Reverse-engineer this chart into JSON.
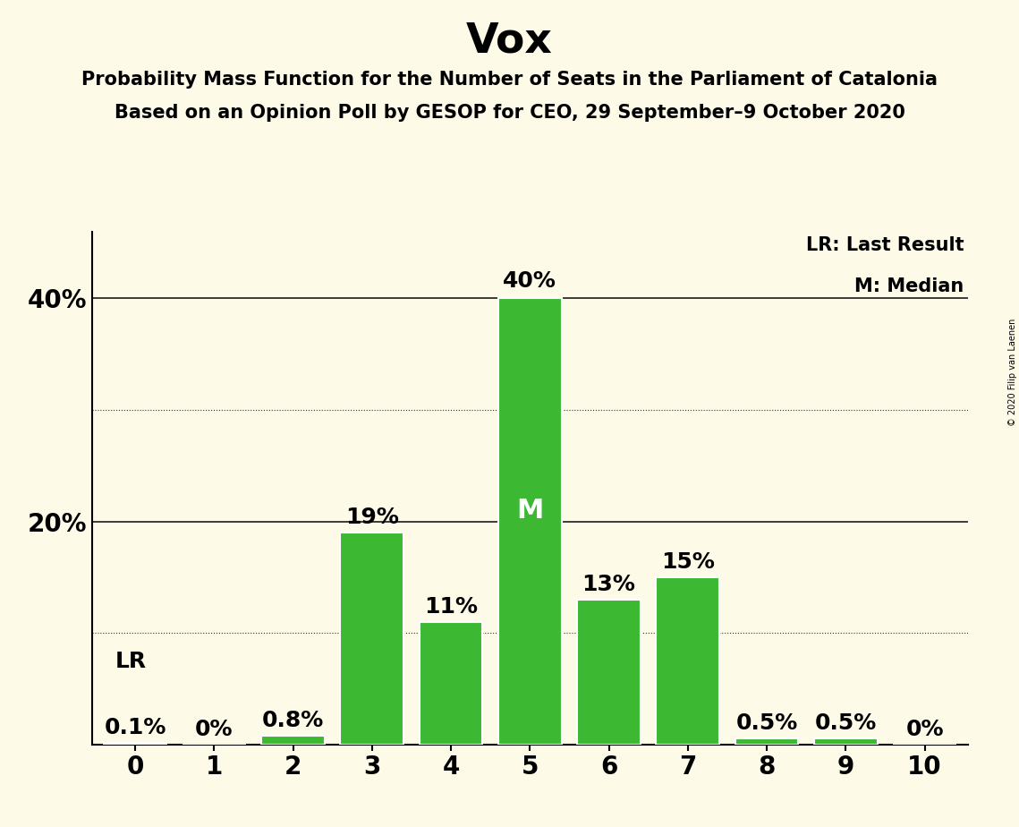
{
  "title": "Vox",
  "subtitle1": "Probability Mass Function for the Number of Seats in the Parliament of Catalonia",
  "subtitle2": "Based on an Opinion Poll by GESOP for CEO, 29 September–9 October 2020",
  "copyright": "© 2020 Filip van Laenen",
  "categories": [
    0,
    1,
    2,
    3,
    4,
    5,
    6,
    7,
    8,
    9,
    10
  ],
  "values": [
    0.1,
    0.0,
    0.8,
    19.0,
    11.0,
    40.0,
    13.0,
    15.0,
    0.5,
    0.5,
    0.0
  ],
  "bar_color": "#3cb832",
  "background_color": "#fdfae8",
  "bar_edge_color": "#ffffff",
  "last_result": 0,
  "median": 5,
  "median_label_color": "#ffffff",
  "solid_line_color": "#1a1a1a",
  "dotted_line_color": "#333333",
  "ytick_labels": [
    "20%",
    "40%"
  ],
  "ytick_values": [
    20,
    40
  ],
  "ylim": [
    0,
    46
  ],
  "dotted_grid_values": [
    10,
    30
  ],
  "solid_grid_values": [
    20,
    40
  ],
  "legend_lr": "LR: Last Result",
  "legend_m": "M: Median",
  "title_fontsize": 34,
  "subtitle_fontsize": 15,
  "tick_fontsize": 20,
  "bar_label_fontsize": 18,
  "legend_fontsize": 15,
  "median_fontsize": 22,
  "lr_label_fontsize": 18
}
